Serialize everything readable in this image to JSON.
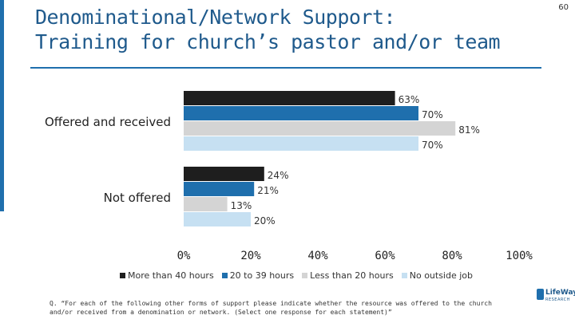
{
  "page_number": "60",
  "title_lines": [
    "Denominational/Network Support:",
    "Training for church’s pastor and/or team"
  ],
  "chart_data": {
    "type": "bar",
    "orientation": "horizontal",
    "categories": [
      "Offered and received",
      "Not offered"
    ],
    "series": [
      {
        "name": "More than 40 hours",
        "values": [
          63,
          24
        ],
        "color": "#1e1e1e"
      },
      {
        "name": "20 to 39 hours",
        "values": [
          70,
          21
        ],
        "color": "#1f6fad"
      },
      {
        "name": "Less than 20 hours",
        "values": [
          81,
          13
        ],
        "color": "#d4d4d4"
      },
      {
        "name": "No outside job",
        "values": [
          70,
          20
        ],
        "color": "#c6e0f2"
      }
    ],
    "data_labels": [
      [
        "63%",
        "70%",
        "81%",
        "70%"
      ],
      [
        "24%",
        "21%",
        "13%",
        "20%"
      ]
    ],
    "xlim": [
      0,
      100
    ],
    "x_ticks": [
      "0%",
      "20%",
      "40%",
      "60%",
      "80%",
      "100%"
    ],
    "legend_position": "bottom",
    "grid": false
  },
  "footnote": "Q. “For each of the following other forms of support please indicate whether the resource was offered to the church and/or received from a denomination or network. (Select one response for each statement)”",
  "logo": {
    "name": "LifeWay",
    "sub": "RESEARCH"
  }
}
